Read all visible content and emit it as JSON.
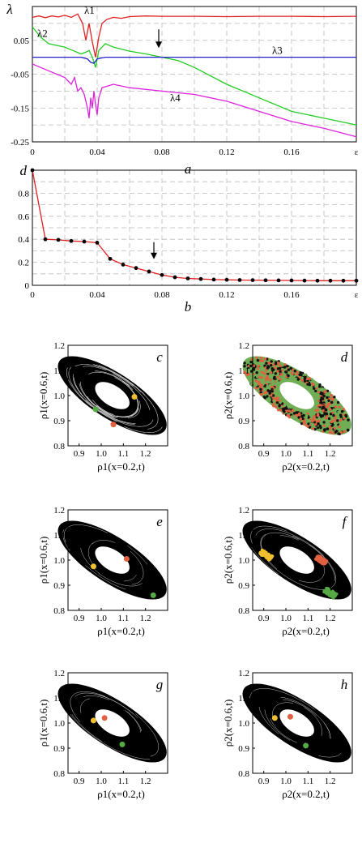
{
  "chart_data": [
    {
      "panel_label": "a",
      "type": "line",
      "ylabel": "λ",
      "xlabel": "ε",
      "xlim": [
        0,
        0.2
      ],
      "ylim": [
        -0.25,
        0.15
      ],
      "x_ticks": [
        "0",
        "0.04",
        "0.08",
        "0.12",
        "0.16",
        "ε"
      ],
      "y_ticks": [
        "0.05",
        "-0.05",
        "-0.15",
        "-0.25"
      ],
      "grid": true,
      "annotations": [
        {
          "text": "↓",
          "x": 0.078,
          "y": 0.025
        }
      ],
      "series": [
        {
          "name": "λ1",
          "color": "#e02020",
          "label_x": 0.032,
          "label_y": 0.128,
          "x": [
            0,
            0.004,
            0.008,
            0.012,
            0.016,
            0.02,
            0.024,
            0.028,
            0.031,
            0.033,
            0.035,
            0.037,
            0.039,
            0.041,
            0.043,
            0.046,
            0.05,
            0.055,
            0.06,
            0.07,
            0.08,
            0.1,
            0.12,
            0.14,
            0.16,
            0.18,
            0.2
          ],
          "y": [
            0.118,
            0.122,
            0.117,
            0.122,
            0.119,
            0.124,
            0.118,
            0.128,
            0.1,
            0.05,
            0.1,
            0.045,
            0.0,
            0.06,
            0.1,
            0.112,
            0.118,
            0.115,
            0.12,
            0.122,
            0.121,
            0.121,
            0.12,
            0.121,
            0.121,
            0.12,
            0.121
          ]
        },
        {
          "name": "λ2",
          "color": "#22cc22",
          "label_x": 0.003,
          "label_y": 0.06,
          "x": [
            0,
            0.005,
            0.01,
            0.015,
            0.02,
            0.025,
            0.03,
            0.033,
            0.035,
            0.037,
            0.039,
            0.041,
            0.045,
            0.05,
            0.06,
            0.07,
            0.08,
            0.09,
            0.1,
            0.12,
            0.14,
            0.16,
            0.18,
            0.2
          ],
          "y": [
            0.09,
            0.06,
            0.04,
            0.035,
            0.03,
            0.02,
            0.01,
            0.015,
            0.02,
            0.0,
            -0.03,
            0.02,
            0.04,
            0.03,
            0.018,
            0.01,
            0.0,
            -0.01,
            -0.03,
            -0.08,
            -0.12,
            -0.16,
            -0.18,
            -0.2
          ]
        },
        {
          "name": "λ3",
          "color": "#2020cc",
          "label_x": 0.148,
          "label_y": 0.01,
          "x": [
            0,
            0.02,
            0.03,
            0.034,
            0.036,
            0.038,
            0.04,
            0.045,
            0.06,
            0.08,
            0.1,
            0.12,
            0.14,
            0.16,
            0.18,
            0.2
          ],
          "y": [
            0.0,
            0.0,
            0.0,
            -0.005,
            -0.015,
            -0.018,
            -0.005,
            0.0,
            0.0,
            0.0,
            0.0,
            0.0,
            0.0,
            0.0,
            0.0,
            0.0
          ]
        },
        {
          "name": "λ4",
          "color": "#dd22dd",
          "label_x": 0.085,
          "label_y": -0.13,
          "x": [
            0,
            0.005,
            0.01,
            0.015,
            0.02,
            0.024,
            0.026,
            0.028,
            0.03,
            0.032,
            0.034,
            0.035,
            0.036,
            0.037,
            0.038,
            0.039,
            0.04,
            0.041,
            0.043,
            0.05,
            0.06,
            0.08,
            0.1,
            0.12,
            0.14,
            0.16,
            0.18,
            0.2
          ],
          "y": [
            -0.02,
            -0.03,
            -0.04,
            -0.05,
            -0.06,
            -0.08,
            -0.06,
            -0.1,
            -0.09,
            -0.11,
            -0.15,
            -0.18,
            -0.12,
            -0.15,
            -0.1,
            -0.14,
            -0.17,
            -0.12,
            -0.09,
            -0.08,
            -0.09,
            -0.1,
            -0.11,
            -0.13,
            -0.16,
            -0.19,
            -0.21,
            -0.235
          ]
        }
      ]
    },
    {
      "panel_label": "b",
      "type": "line",
      "ylabel": "d",
      "xlabel": "ε",
      "xlim": [
        0,
        0.2
      ],
      "ylim": [
        0,
        1.0
      ],
      "x_ticks": [
        "0",
        "0.04",
        "0.08",
        "0.12",
        "0.16",
        "ε"
      ],
      "y_ticks": [
        "0.8",
        "0.6",
        "0.4",
        "0.2",
        "0"
      ],
      "grid": true,
      "annotations": [
        {
          "text": "↓",
          "x": 0.075,
          "y": 0.22
        }
      ],
      "series": [
        {
          "name": "",
          "color": "#e02020",
          "x": [
            0,
            0.008,
            0.016,
            0.024,
            0.032,
            0.04,
            0.048,
            0.056,
            0.064,
            0.072,
            0.08,
            0.088,
            0.096,
            0.104,
            0.112,
            0.12,
            0.128,
            0.136,
            0.144,
            0.152,
            0.16,
            0.168,
            0.176,
            0.184,
            0.192,
            0.2
          ],
          "y": [
            1.0,
            0.4,
            0.395,
            0.385,
            0.38,
            0.37,
            0.23,
            0.18,
            0.15,
            0.12,
            0.09,
            0.07,
            0.06,
            0.055,
            0.05,
            0.048,
            0.046,
            0.045,
            0.044,
            0.043,
            0.042,
            0.041,
            0.04,
            0.04,
            0.04,
            0.04
          ]
        }
      ]
    },
    {
      "panel_label": "c",
      "type": "scatter",
      "xlabel": "ρ1(x=0.2,t)",
      "ylabel": "ρ1(x=0.6,t)",
      "xlim": [
        0.85,
        1.3
      ],
      "ylim": [
        0.8,
        1.2
      ],
      "x_ticks": [
        "0.9",
        "1.0",
        "1.1",
        "1.2"
      ],
      "y_ticks": [
        "1.2",
        "1.1",
        "1.0",
        "0.9",
        "0.8"
      ],
      "attractor_density": "sparse",
      "clusters": [
        {
          "color": "#f0c030",
          "x": 1.15,
          "y": 0.995,
          "r": 0.006
        },
        {
          "color": "#55aa44",
          "x": 0.975,
          "y": 0.945,
          "r": 0.006
        },
        {
          "color": "#e06040",
          "x": 1.055,
          "y": 0.885,
          "r": 0.007
        }
      ]
    },
    {
      "panel_label": "d",
      "type": "scatter",
      "xlabel": "ρ2(x=0.2,t)",
      "ylabel": "ρ2(x=0.6,t)",
      "xlim": [
        0.85,
        1.3
      ],
      "ylim": [
        0.8,
        1.2
      ],
      "x_ticks": [
        "0.9",
        "1.0",
        "1.1",
        "1.2"
      ],
      "y_ticks": [
        "1.2",
        "1.1",
        "1.0",
        "0.9",
        "0.8"
      ],
      "attractor_density": "mixed",
      "clusters": []
    },
    {
      "panel_label": "e",
      "type": "scatter",
      "xlabel": "ρ1(x=0.2,t)",
      "ylabel": "ρ1(x=0.6,t)",
      "xlim": [
        0.85,
        1.3
      ],
      "ylim": [
        0.8,
        1.2
      ],
      "x_ticks": [
        "0.9",
        "1.0",
        "1.1",
        "1.2"
      ],
      "y_ticks": [
        "1.2",
        "1.1",
        "1.0",
        "0.9",
        "0.8"
      ],
      "attractor_density": "dense",
      "clusters": [
        {
          "color": "#f0c030",
          "x": 0.965,
          "y": 0.975,
          "r": 0.006
        },
        {
          "color": "#e06040",
          "x": 1.115,
          "y": 1.005,
          "r": 0.006
        },
        {
          "color": "#55aa44",
          "x": 1.235,
          "y": 0.86,
          "r": 0.006
        }
      ]
    },
    {
      "panel_label": "f",
      "type": "scatter",
      "xlabel": "ρ2(x=0.2,t)",
      "ylabel": "ρ2(x=0.6,t)",
      "xlim": [
        0.85,
        1.3
      ],
      "ylim": [
        0.8,
        1.2
      ],
      "x_ticks": [
        "0.9",
        "1.0",
        "1.1",
        "1.2"
      ],
      "y_ticks": [
        "1.2",
        "1.1",
        "1.0",
        "0.9",
        "0.8"
      ],
      "attractor_density": "dense",
      "clusters": [
        {
          "color": "#f0c030",
          "x": 0.91,
          "y": 1.02,
          "r": 0.028
        },
        {
          "color": "#e06040",
          "x": 1.16,
          "y": 1.0,
          "r": 0.025
        },
        {
          "color": "#55aa44",
          "x": 1.2,
          "y": 0.87,
          "r": 0.028
        }
      ]
    },
    {
      "panel_label": "g",
      "type": "scatter",
      "xlabel": "ρ1(x=0.2,t)",
      "ylabel": "ρ1(x=0.6,t)",
      "xlim": [
        0.85,
        1.3
      ],
      "ylim": [
        0.8,
        1.2
      ],
      "x_ticks": [
        "0.9",
        "1.0",
        "1.1",
        "1.2"
      ],
      "y_ticks": [
        "1.2",
        "1.1",
        "1.0",
        "0.9",
        "0.8"
      ],
      "attractor_density": "dense",
      "clusters": [
        {
          "color": "#f0c030",
          "x": 0.965,
          "y": 1.01,
          "r": 0.006
        },
        {
          "color": "#e06040",
          "x": 1.015,
          "y": 1.02,
          "r": 0.006
        },
        {
          "color": "#55aa44",
          "x": 1.095,
          "y": 0.915,
          "r": 0.006
        }
      ]
    },
    {
      "panel_label": "h",
      "type": "scatter",
      "xlabel": "ρ2(x=0.2,t)",
      "ylabel": "ρ2(x=0.6,t)",
      "xlim": [
        0.85,
        1.3
      ],
      "ylim": [
        0.8,
        1.2
      ],
      "x_ticks": [
        "0.9",
        "1.0",
        "1.1",
        "1.2"
      ],
      "y_ticks": [
        "1.2",
        "1.1",
        "1.0",
        "0.9",
        "0.8"
      ],
      "attractor_density": "dense",
      "clusters": [
        {
          "color": "#f0c030",
          "x": 0.95,
          "y": 1.02,
          "r": 0.006
        },
        {
          "color": "#e06040",
          "x": 1.02,
          "y": 1.025,
          "r": 0.006
        },
        {
          "color": "#55aa44",
          "x": 1.09,
          "y": 0.91,
          "r": 0.006
        }
      ]
    }
  ]
}
